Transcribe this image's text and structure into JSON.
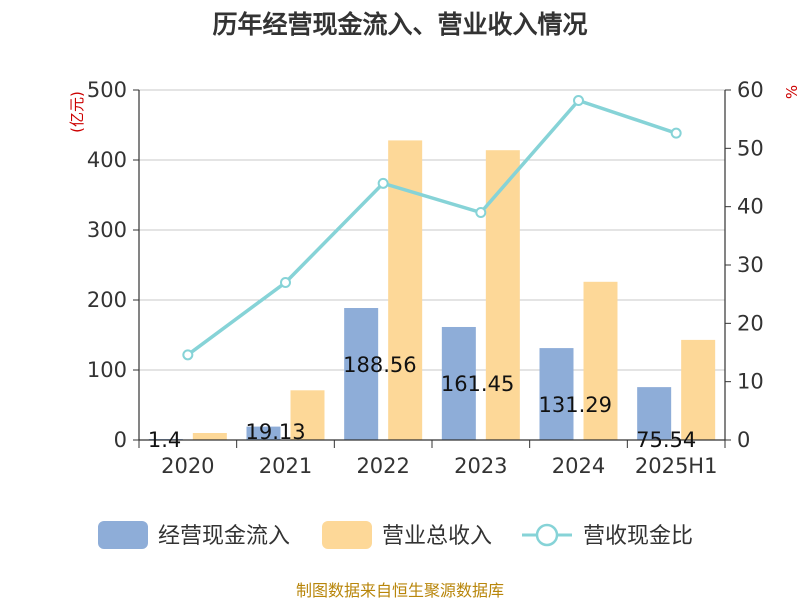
{
  "chart_data": {
    "type": "bar",
    "title": "历年经营现金流入、营业收入情况",
    "left_unit": "(亿元)",
    "right_unit": "%",
    "categories": [
      "2020",
      "2021",
      "2022",
      "2023",
      "2024",
      "2025H1"
    ],
    "series": [
      {
        "name": "经营现金流入",
        "type": "bar",
        "axis": "left",
        "color": "#8eadd8",
        "values": [
          1.4,
          19.13,
          188.56,
          161.45,
          131.29,
          75.54
        ],
        "labels": [
          "1.4",
          "19.13",
          "188.56",
          "161.45",
          "131.29",
          "75.54"
        ]
      },
      {
        "name": "营业总收入",
        "type": "bar",
        "axis": "left",
        "color": "#fdd898",
        "values": [
          10,
          71,
          428,
          414,
          226,
          143
        ]
      },
      {
        "name": "营收现金比",
        "type": "line",
        "axis": "right",
        "color": "#86d3d7",
        "values": [
          14.6,
          27.0,
          44.0,
          39.0,
          58.2,
          52.6
        ]
      }
    ],
    "ylim_left": [
      0,
      500
    ],
    "yticks_left": [
      0,
      100,
      200,
      300,
      400,
      500
    ],
    "ylim_right": [
      0,
      60
    ],
    "yticks_right": [
      0,
      10,
      20,
      30,
      40,
      50,
      60
    ],
    "grid": true,
    "legend_position": "bottom"
  },
  "source_text": "制图数据来自恒生聚源数据库"
}
